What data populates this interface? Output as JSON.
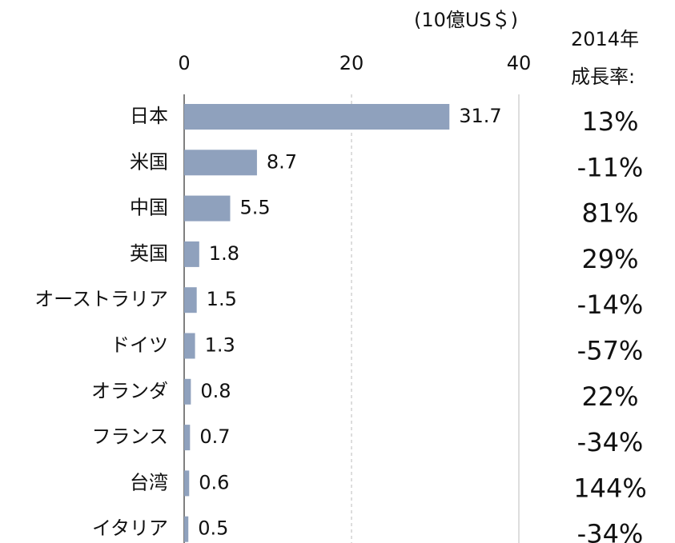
{
  "chart_data": {
    "type": "bar",
    "orientation": "horizontal",
    "x_axis_label": "(10億US＄)",
    "categories": [
      "日本",
      "米国",
      "中国",
      "英国",
      "オーストラリア",
      "ドイツ",
      "オランダ",
      "フランス",
      "台湾",
      "イタリア"
    ],
    "values": [
      31.7,
      8.7,
      5.5,
      1.8,
      1.5,
      1.3,
      0.8,
      0.7,
      0.6,
      0.5
    ],
    "color": "#8fa1bd",
    "xlim": [
      0,
      40
    ],
    "xticks": [
      0,
      20,
      40
    ],
    "grid": true,
    "growth_title": [
      "2014年",
      "成長率:"
    ],
    "growth_values": [
      13,
      -11,
      81,
      29,
      -14,
      -57,
      22,
      -34,
      144,
      -34
    ],
    "growth_value_labels": [
      "13%",
      "-11%",
      "81%",
      "29%",
      "-14%",
      "-57%",
      "22%",
      "-34%",
      "144%",
      "-34%"
    ]
  }
}
